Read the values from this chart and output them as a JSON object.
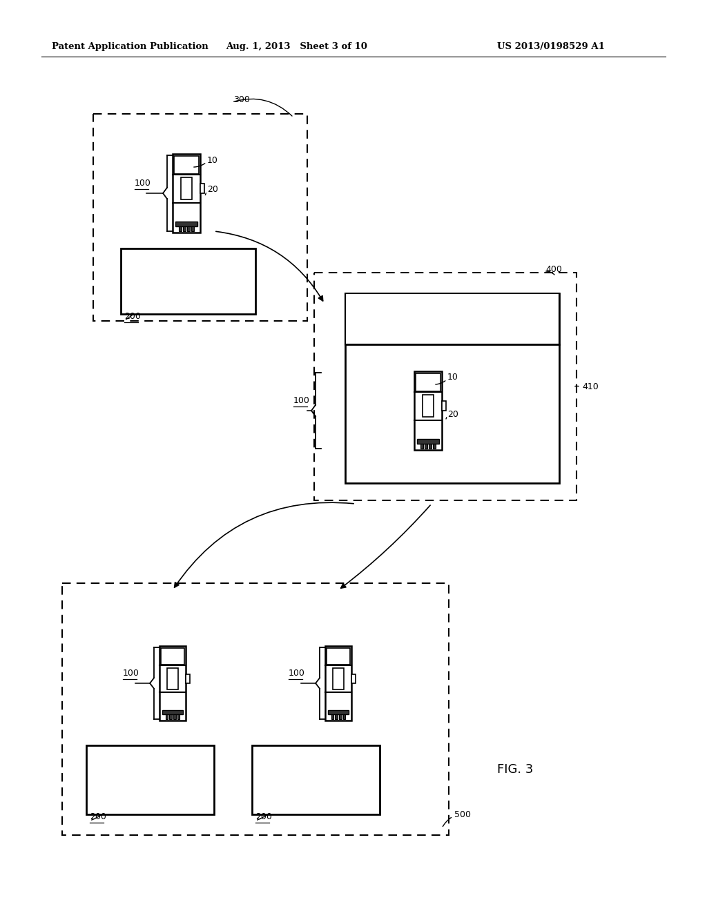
{
  "bg_color": "#ffffff",
  "line_color": "#000000",
  "header_left": "Patent Application Publication",
  "header_mid": "Aug. 1, 2013   Sheet 3 of 10",
  "header_right": "US 2013/0198529 A1",
  "fig_label": "FIG. 3"
}
